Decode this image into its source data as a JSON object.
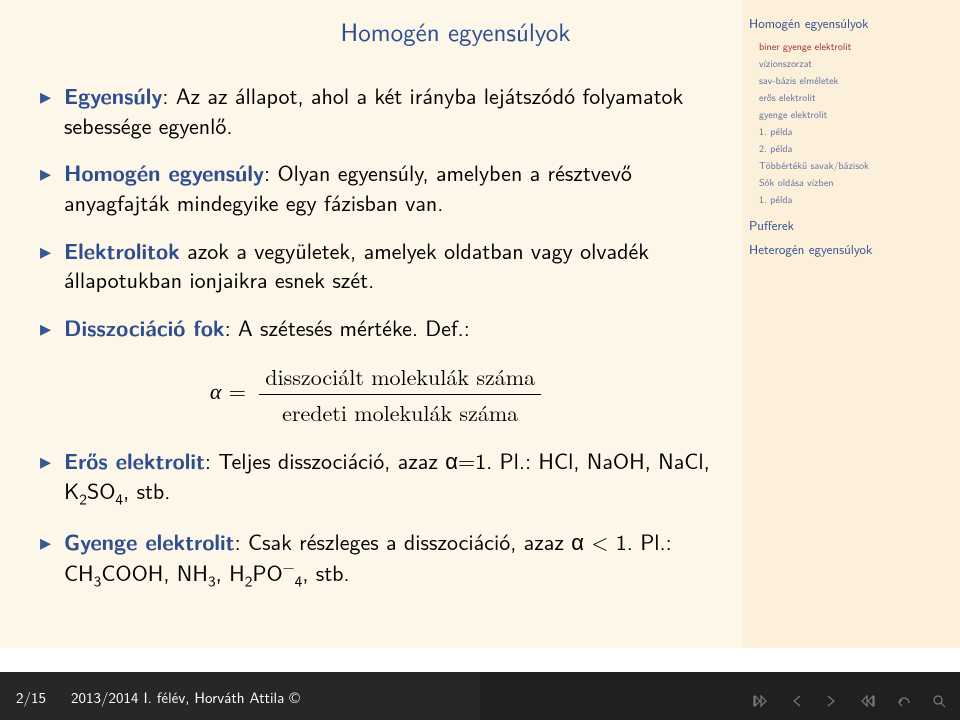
{
  "colors": {
    "main_bg": "#fcf7e8",
    "sidebar_bg": "#fcf0db",
    "footer_left_bg": "#272727",
    "footer_right_bg": "#202020",
    "title_color": "#2f4e8f",
    "bullet_color": "#345996",
    "bold_color": "#2f4e8f",
    "text_color": "#000000",
    "side_main_color": "#2f4e8f",
    "side_sub_color": "#616fa1"
  },
  "title": "Homogén egyensúlyok",
  "items": [
    {
      "bold": "Egyensúly",
      "rest": ": Az az állapot, ahol a két irányba lejátszódó folyamatok sebessége egyenlő."
    },
    {
      "bold": "Homogén egyensúly",
      "rest": ": Olyan egyensúly, amelyben a résztvevő anyagfajták mindegyike egy fázisban van."
    },
    {
      "bold": "Elektrolitok",
      "rest": " azok a vegyületek, amelyek oldatban vagy olvadék állapotukban ionjaikra esnek szét."
    },
    {
      "bold": "Disszociáció fok",
      "rest": ": A szétesés mértéke. Def.:"
    }
  ],
  "formula": {
    "alpha": "α",
    "eq": "=",
    "num": "disszociált molekulák száma",
    "den": "eredeti molekulák száma"
  },
  "items2": [
    {
      "bold": "Erős elektrolit",
      "rest_html": ": Teljes disszociáció, azaz α=1. Pl.: HCl, NaOH, NaCl, K<sub class=\"sub\">2</sub>SO<sub class=\"sub\">4</sub>, stb."
    },
    {
      "bold": "Gyenge elektrolit",
      "rest_html": ": Csak részleges a disszociáció, azaz α &lt; 1. Pl.: CH<sub class=\"sub\">3</sub>COOH, NH<sub class=\"sub\">3</sub>, H<sub class=\"sub\">2</sub>PO<sup class=\"sup\">−</sup><sub class=\"sub\">4</sub>, stb."
    }
  ],
  "sidebar": {
    "s1_title": "Homogén egyensúlyok",
    "s1_items": [
      "biner gyenge elektrolit",
      "vízionszorzat",
      "sav-bázis elméletek",
      "erős elektrolit",
      "gyenge elektrolit",
      "1. példa",
      "2. példa",
      "Többértékű savak/bázisok",
      "Sók oldása vízben",
      "1. példa"
    ],
    "s1_highlight_idx": 0,
    "s2_title": "Pufferek",
    "s3_title": "Heterogén egyensúlyok"
  },
  "footer": {
    "page": "2/15",
    "right": "2013/2014 I. félév, Horváth Attila ©"
  }
}
